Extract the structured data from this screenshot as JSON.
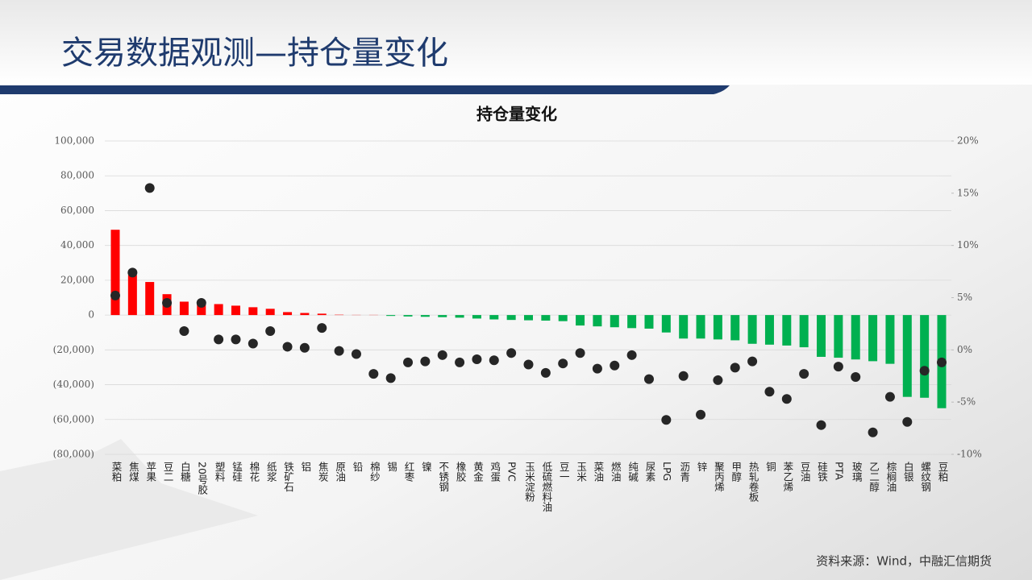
{
  "header": {
    "title": "交易数据观测—持仓量变化"
  },
  "source": "资料来源：Wind，中融汇信期货",
  "chart_data": {
    "type": "combo",
    "title": "持仓量变化",
    "categories": [
      "菜粕",
      "焦煤",
      "苹果",
      "豆二",
      "白糖",
      "20号胶",
      "塑料",
      "锰硅",
      "棉花",
      "纸浆",
      "铁矿石",
      "铝",
      "焦炭",
      "原油",
      "铅",
      "棉纱",
      "锡",
      "红枣",
      "镍",
      "不锈钢",
      "橡胶",
      "黄金",
      "鸡蛋",
      "PVC",
      "玉米淀粉",
      "低硫燃料油",
      "豆一",
      "玉米",
      "菜油",
      "燃油",
      "纯碱",
      "尿素",
      "LPG",
      "沥青",
      "锌",
      "聚丙烯",
      "甲醇",
      "热轧卷板",
      "铜",
      "苯乙烯",
      "豆油",
      "硅铁",
      "PTA",
      "玻璃",
      "乙二醇",
      "棕榈油",
      "白银",
      "螺纹钢",
      "豆粕"
    ],
    "series": [
      {
        "type": "bar",
        "positive_color": "#ff0000",
        "negative_color": "#00b050",
        "values": [
          49000,
          23000,
          19000,
          12000,
          7700,
          7300,
          6300,
          5400,
          4500,
          3600,
          1700,
          1200,
          800,
          200,
          100,
          100,
          -500,
          -800,
          -1000,
          -1200,
          -1500,
          -2000,
          -2500,
          -2800,
          -3000,
          -3200,
          -3500,
          -6000,
          -6500,
          -7000,
          -7500,
          -7800,
          -10000,
          -13500,
          -13500,
          -14000,
          -14500,
          -16500,
          -17000,
          -17500,
          -18500,
          -24000,
          -24500,
          -25500,
          -26500,
          -28000,
          -47000,
          -47500,
          -53500
        ]
      },
      {
        "type": "scatter",
        "axis": "y2",
        "color": "#262626",
        "values": [
          5.2,
          7.4,
          15.5,
          4.5,
          1.8,
          4.5,
          1.0,
          1.0,
          0.6,
          1.8,
          0.3,
          0.2,
          2.1,
          -0.1,
          -0.4,
          -2.3,
          -2.7,
          -1.2,
          -1.1,
          -0.5,
          -1.2,
          -0.9,
          -1.0,
          -0.3,
          -1.4,
          -2.2,
          -1.3,
          -0.3,
          -1.8,
          -1.5,
          -0.5,
          -2.8,
          -6.7,
          -2.5,
          -6.2,
          -2.9,
          -1.7,
          -1.1,
          -4.0,
          -4.7,
          -2.3,
          -7.2,
          -1.6,
          -2.6,
          -7.9,
          -4.5,
          -6.9,
          -2.0,
          -1.2
        ]
      }
    ],
    "ylim": [
      -80000,
      100000
    ],
    "yticks": [
      {
        "value": -80000,
        "label": "(80,000)"
      },
      {
        "value": -60000,
        "label": "(60,000)"
      },
      {
        "value": -40000,
        "label": "(40,000)"
      },
      {
        "value": -20000,
        "label": "(20,000)"
      },
      0,
      {
        "value": 20000,
        "label": "20,000"
      },
      {
        "value": 40000,
        "label": "40,000"
      },
      {
        "value": 60000,
        "label": "60,000"
      },
      {
        "value": 80000,
        "label": "80,000"
      },
      {
        "value": 100000,
        "label": "100,000"
      }
    ],
    "y2lim": [
      -10,
      20
    ],
    "y2ticks": [
      {
        "value": -10,
        "label": "-10%"
      },
      {
        "value": -5,
        "label": "-5%"
      },
      {
        "value": 0,
        "label": "0%"
      },
      {
        "value": 5,
        "label": "5%"
      },
      {
        "value": 10,
        "label": "10%"
      },
      {
        "value": 15,
        "label": "15%"
      },
      {
        "value": 20,
        "label": "20%"
      }
    ],
    "grid": true
  }
}
